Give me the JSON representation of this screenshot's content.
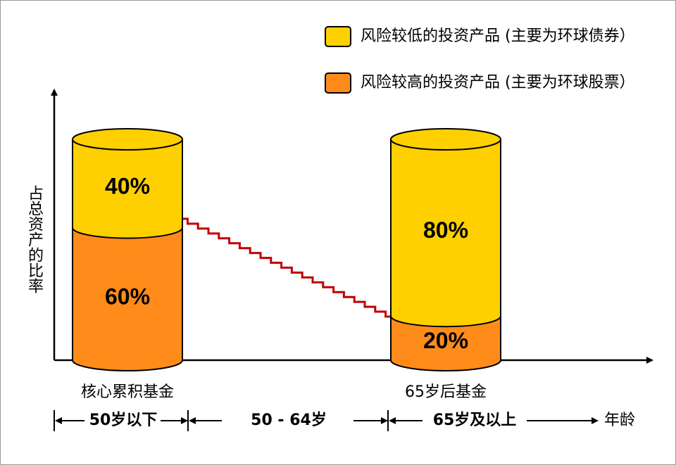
{
  "chart_data": {
    "type": "bar",
    "stacked": true,
    "y_label": "占总资产的比率",
    "x_label": "年龄",
    "categories": [
      "核心累积基金",
      "65岁后基金"
    ],
    "series": [
      {
        "name": "风险较低的投资产品 (主要为环球债券）",
        "color": "#ffd000",
        "values": [
          40,
          80
        ],
        "value_labels": [
          "40%",
          "80%"
        ]
      },
      {
        "name": "风险较高的投资产品 (主要为环球股票）",
        "color": "#ff8c1a",
        "values": [
          60,
          20
        ],
        "value_labels": [
          "60%",
          "20%"
        ]
      }
    ],
    "age_ranges": [
      "50岁以下",
      "50 - 64岁",
      "65岁及以上"
    ]
  }
}
